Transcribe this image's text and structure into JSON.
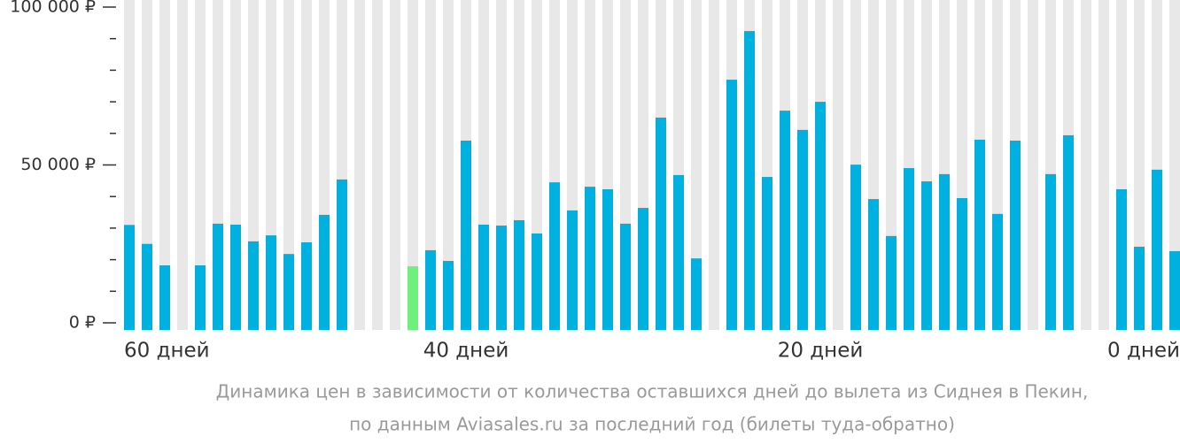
{
  "chart_data": {
    "type": "bar",
    "caption": [
      "Динамика цен в зависимости от количества оставшихся дней до вылета из Сиднея в Пекин,",
      "по данным Aviasales.ru за последний год (билеты туда-обратно)"
    ],
    "categories": [
      "60 дней",
      null,
      null,
      null,
      null,
      null,
      null,
      null,
      null,
      null,
      null,
      null,
      null,
      null,
      null,
      null,
      null,
      null,
      null,
      "40 дней",
      null,
      null,
      null,
      null,
      null,
      null,
      null,
      null,
      null,
      null,
      null,
      null,
      null,
      null,
      null,
      null,
      null,
      null,
      null,
      "20 дней",
      null,
      null,
      null,
      null,
      null,
      null,
      null,
      null,
      null,
      null,
      null,
      null,
      null,
      null,
      null,
      null,
      null,
      null,
      null,
      "0 дней"
    ],
    "values": [
      31000,
      25000,
      18200,
      null,
      18200,
      31400,
      31100,
      25800,
      27700,
      21800,
      25500,
      34200,
      45400,
      null,
      null,
      null,
      17900,
      23000,
      19600,
      57700,
      31100,
      30800,
      32500,
      28300,
      44500,
      35600,
      43100,
      42300,
      31400,
      36400,
      65000,
      46800,
      20400,
      null,
      77000,
      92400,
      46200,
      67200,
      61100,
      70000,
      null,
      50100,
      39200,
      27500,
      49000,
      44800,
      47100,
      39500,
      58000,
      34500,
      57700,
      null,
      47100,
      59400,
      null,
      null,
      42300,
      24100,
      48500,
      22700
    ],
    "colors": [
      "#00b0de",
      "#00b0de",
      "#00b0de",
      "#00b0de",
      "#00b0de",
      "#00b0de",
      "#00b0de",
      "#00b0de",
      "#00b0de",
      "#00b0de",
      "#00b0de",
      "#00b0de",
      "#00b0de",
      "#00b0de",
      "#00b0de",
      "#00b0de",
      "#6eef7e",
      "#00b0de",
      "#00b0de",
      "#00b0de",
      "#00b0de",
      "#00b0de",
      "#00b0de",
      "#00b0de",
      "#00b0de",
      "#00b0de",
      "#00b0de",
      "#00b0de",
      "#00b0de",
      "#00b0de",
      "#00b0de",
      "#00b0de",
      "#00b0de",
      "#00b0de",
      "#00b0de",
      "#00b0de",
      "#00b0de",
      "#00b0de",
      "#00b0de",
      "#00b0de",
      "#00b0de",
      "#00b0de",
      "#00b0de",
      "#00b0de",
      "#00b0de",
      "#00b0de",
      "#00b0de",
      "#00b0de",
      "#00b0de",
      "#00b0de",
      "#00b0de",
      "#00b0de",
      "#00b0de",
      "#00b0de",
      "#00b0de",
      "#00b0de",
      "#00b0de",
      "#00b0de",
      "#00b0de",
      "#00b0de"
    ],
    "ylim": [
      0,
      100000
    ],
    "yticks": [
      {
        "value": 0,
        "label": "0 ₽"
      },
      {
        "value": 50000,
        "label": "50 000 ₽"
      },
      {
        "value": 100000,
        "label": "100 000 ₽"
      }
    ],
    "minor_yticks": [
      10000,
      20000,
      30000,
      40000,
      60000,
      70000,
      80000,
      90000
    ]
  }
}
